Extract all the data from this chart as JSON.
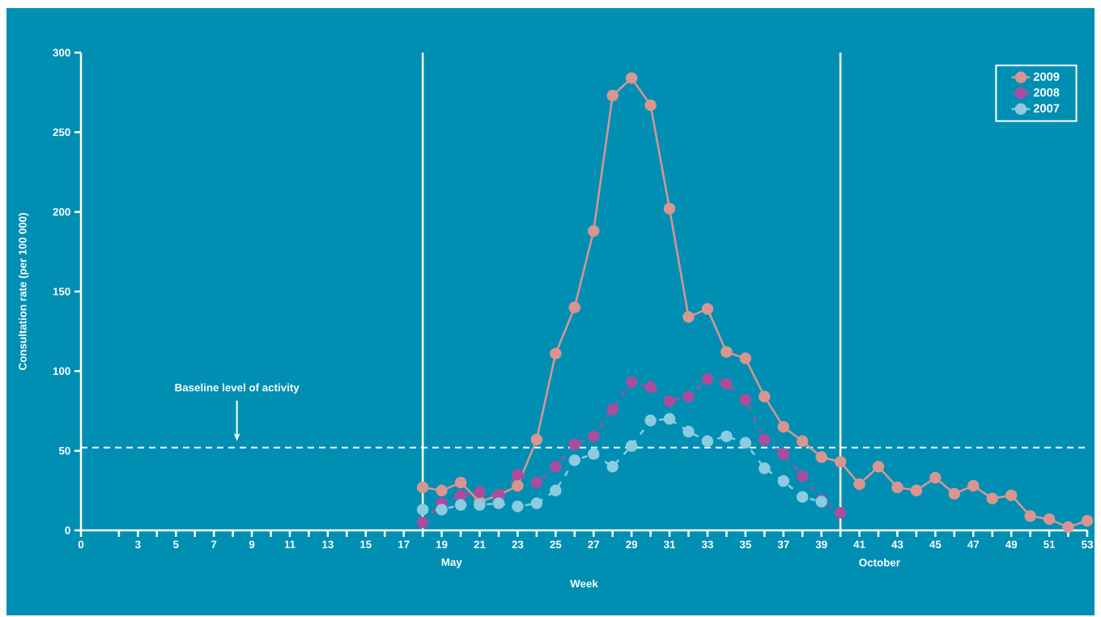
{
  "chart_data": {
    "type": "line",
    "xlabel": "Week",
    "ylabel": "Consultation rate (per 100 000)",
    "marker": "circle",
    "legend": "top right",
    "xlim": [
      0,
      53
    ],
    "ylim": [
      0,
      300
    ],
    "xticks": [
      0,
      {
        "value": 2,
        "label": null
      },
      3,
      {
        "value": 4,
        "label": null
      },
      5,
      {
        "value": 6,
        "label": null
      },
      7,
      {
        "value": 8,
        "label": null
      },
      9,
      {
        "value": 10,
        "label": null
      },
      11,
      {
        "value": 12,
        "label": null
      },
      13,
      {
        "value": 14,
        "label": null
      },
      15,
      {
        "value": 16,
        "label": null
      },
      17,
      {
        "value": 18,
        "label": null
      },
      19,
      {
        "value": 20,
        "label": null
      },
      21,
      {
        "value": 22,
        "label": null
      },
      23,
      {
        "value": 24,
        "label": null
      },
      25,
      {
        "value": 26,
        "label": null
      },
      27,
      {
        "value": 28,
        "label": null
      },
      29,
      {
        "value": 30,
        "label": null
      },
      31,
      {
        "value": 32,
        "label": null
      },
      33,
      {
        "value": 34,
        "label": null
      },
      35,
      {
        "value": 36,
        "label": null
      },
      37,
      {
        "value": 38,
        "label": null
      },
      39,
      {
        "value": 40,
        "label": null
      },
      41,
      {
        "value": 42,
        "label": null
      },
      43,
      {
        "value": 44,
        "label": null
      },
      45,
      {
        "value": 46,
        "label": null
      },
      47,
      {
        "value": 48,
        "label": null
      },
      49,
      {
        "value": 50,
        "label": null
      },
      51,
      {
        "value": 52,
        "label": null
      },
      53
    ],
    "yticks": [
      0,
      50,
      100,
      150,
      200,
      250,
      300
    ],
    "series": [
      {
        "name": "2009",
        "color": "#d99690",
        "line_style": "solid",
        "x": [
          18,
          19,
          20,
          21,
          22,
          23,
          24,
          25,
          26,
          27,
          28,
          29,
          30,
          31,
          32,
          33,
          34,
          35,
          36,
          37,
          38,
          39,
          40,
          41,
          42,
          43,
          44,
          45,
          46,
          47,
          48,
          49,
          50,
          51,
          52,
          53
        ],
        "values": [
          27,
          25,
          30,
          18,
          22,
          28,
          57,
          111,
          140,
          188,
          273,
          284,
          267,
          202,
          134,
          139,
          112,
          108,
          84,
          65,
          56,
          46,
          43,
          29,
          40,
          27,
          25,
          33,
          23,
          28,
          20,
          22,
          9,
          7,
          2,
          6
        ]
      },
      {
        "name": "2008",
        "color": "#ab4d9f",
        "line_style": "dashed",
        "x": [
          18,
          19,
          20,
          21,
          22,
          23,
          24,
          25,
          26,
          27,
          28,
          29,
          30,
          31,
          32,
          33,
          34,
          35,
          36,
          37,
          38,
          39,
          40
        ],
        "values": [
          5,
          17,
          22,
          24,
          22,
          35,
          30,
          40,
          54,
          59,
          76,
          93,
          90,
          81,
          84,
          95,
          92,
          82,
          57,
          48,
          34,
          19,
          11
        ]
      },
      {
        "name": "2007",
        "color": "#8ccbe0",
        "line_style": "dashed",
        "x": [
          18,
          19,
          20,
          21,
          22,
          23,
          24,
          25,
          26,
          27,
          28,
          29,
          30,
          31,
          32,
          33,
          34,
          35,
          36,
          37,
          38,
          39
        ],
        "values": [
          13,
          13,
          16,
          16,
          17,
          15,
          17,
          25,
          44,
          48,
          40,
          53,
          69,
          70,
          62,
          56,
          59,
          55,
          39,
          31,
          21,
          18
        ]
      }
    ],
    "ref_lines": [
      {
        "axis": "x",
        "value": 18,
        "color": "#ffffff",
        "line_style": "solid"
      },
      {
        "axis": "x",
        "value": 40,
        "color": "#ffffff",
        "line_style": "solid"
      },
      {
        "axis": "y",
        "value": 52,
        "color": "#ffffff",
        "line_style": "dashed"
      }
    ],
    "annotations": [
      "Baseline level of activity",
      "May",
      "October"
    ]
  }
}
